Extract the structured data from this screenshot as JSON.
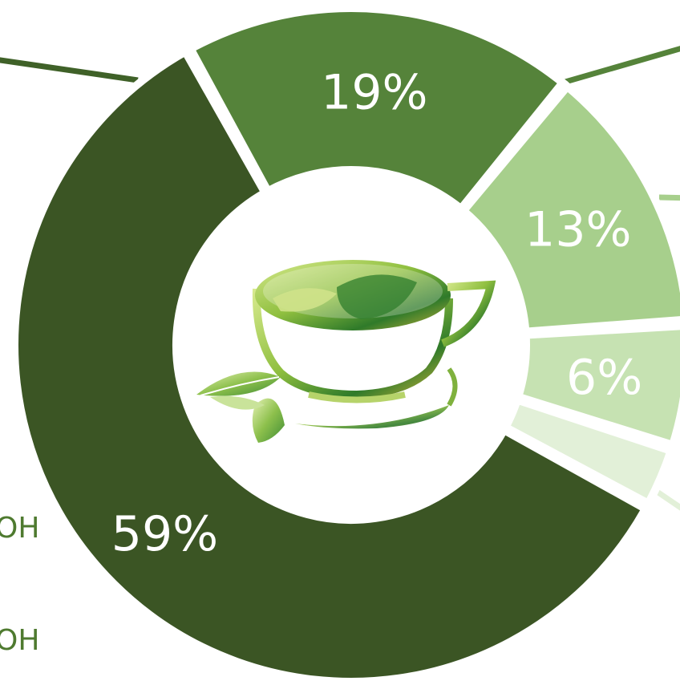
{
  "chart_data": {
    "type": "pie",
    "variant": "donut",
    "categories": [
      "59%",
      "19%",
      "13%",
      "6%",
      "3%"
    ],
    "values": [
      59,
      19,
      13,
      6,
      3
    ],
    "labels": [
      "59%",
      "19%",
      "13%",
      "6%",
      ""
    ],
    "colors": [
      "#3b5524",
      "#55833a",
      "#a7cf8c",
      "#c6e2b2",
      "#e2f0d8"
    ],
    "title": "",
    "xlabel": "",
    "ylabel": ""
  },
  "side_text": [
    "OH",
    "OH"
  ],
  "center_icon": "green-tea-cup-icon",
  "leader_line_color": "#3f6128"
}
